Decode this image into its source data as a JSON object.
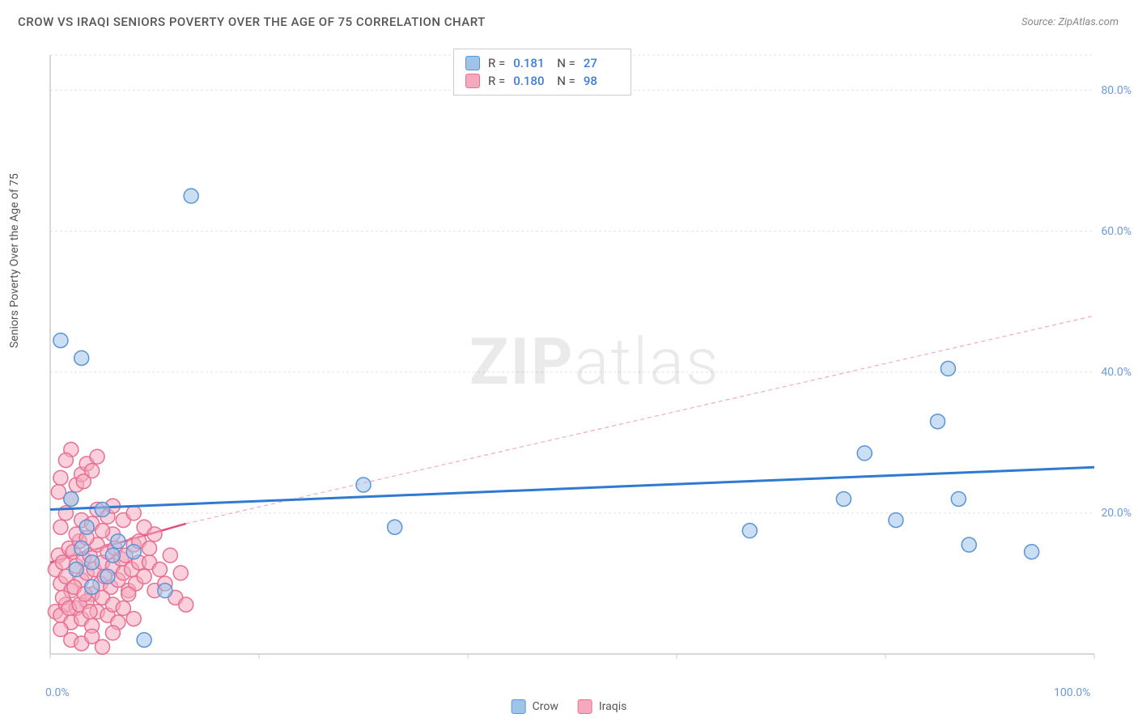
{
  "title": "CROW VS IRAQI SENIORS POVERTY OVER THE AGE OF 75 CORRELATION CHART",
  "source_prefix": "Source: ",
  "source_name": "ZipAtlas.com",
  "y_axis_label": "Seniors Poverty Over the Age of 75",
  "watermark_bold": "ZIP",
  "watermark_light": "atlas",
  "chart": {
    "type": "scatter",
    "xlim": [
      0,
      100
    ],
    "ylim": [
      0,
      85
    ],
    "x_ticks": [
      0,
      20,
      40,
      60,
      80,
      100
    ],
    "y_gridlines": [
      20,
      40,
      60,
      80,
      85
    ],
    "y_tick_labels": [
      {
        "v": 20,
        "label": "20.0%"
      },
      {
        "v": 40,
        "label": "40.0%"
      },
      {
        "v": 60,
        "label": "60.0%"
      },
      {
        "v": 80,
        "label": "80.0%"
      }
    ],
    "x_tick_labels": [
      {
        "v": 0,
        "label": "0.0%"
      },
      {
        "v": 100,
        "label": "100.0%"
      }
    ],
    "background_color": "#ffffff",
    "gridline_color": "#e4e4e4",
    "axis_color": "#cccccc",
    "marker_radius": 9,
    "marker_stroke_width": 1.5,
    "series": [
      {
        "name": "Crow",
        "fill": "#9fc4ea",
        "fill_opacity": 0.55,
        "stroke": "#5a94d6",
        "trend": {
          "x1": 0,
          "y1": 20.5,
          "x2": 100,
          "y2": 26.5,
          "color": "#2f7ad1",
          "width": 3,
          "dash": "none"
        },
        "points": [
          [
            1,
            44.5
          ],
          [
            3,
            42
          ],
          [
            13.5,
            65
          ],
          [
            2,
            22
          ],
          [
            5,
            20.5
          ],
          [
            6,
            14
          ],
          [
            8,
            14.5
          ],
          [
            11,
            9
          ],
          [
            9,
            2
          ],
          [
            30,
            24
          ],
          [
            33,
            18
          ],
          [
            67,
            17.5
          ],
          [
            78,
            28.5
          ],
          [
            76,
            22
          ],
          [
            81,
            19
          ],
          [
            85,
            33
          ],
          [
            86,
            40.5
          ],
          [
            87,
            22
          ],
          [
            88,
            15.5
          ],
          [
            94,
            14.5
          ],
          [
            3,
            15
          ],
          [
            4,
            13
          ],
          [
            2.5,
            12
          ],
          [
            6.5,
            16
          ],
          [
            5.5,
            11
          ],
          [
            4,
            9.5
          ],
          [
            3.5,
            18
          ]
        ]
      },
      {
        "name": "Iraqis",
        "fill": "#f4a9bd",
        "fill_opacity": 0.55,
        "stroke": "#e86f93",
        "trend": {
          "x1": 0,
          "y1": 13,
          "x2": 13,
          "y2": 18.5,
          "color": "#e04f7a",
          "width": 2.5,
          "dash": "none"
        },
        "trend_ext": {
          "x1": 13,
          "y1": 18.5,
          "x2": 100,
          "y2": 48,
          "color": "#f4a9bd",
          "width": 1.2,
          "dash": "5,4"
        },
        "points": [
          [
            0.5,
            12
          ],
          [
            0.8,
            14
          ],
          [
            1,
            10
          ],
          [
            1.2,
            13
          ],
          [
            1.5,
            11
          ],
          [
            1.8,
            15
          ],
          [
            2,
            9
          ],
          [
            2.2,
            14.5
          ],
          [
            2.5,
            12.5
          ],
          [
            2.8,
            16
          ],
          [
            3,
            10.5
          ],
          [
            3.2,
            13.5
          ],
          [
            3.5,
            11.5
          ],
          [
            3.8,
            14
          ],
          [
            4,
            8.5
          ],
          [
            4.2,
            12
          ],
          [
            4.5,
            15.5
          ],
          [
            4.8,
            10
          ],
          [
            5,
            13
          ],
          [
            5.2,
            11
          ],
          [
            5.5,
            14.5
          ],
          [
            5.8,
            9.5
          ],
          [
            6,
            12.5
          ],
          [
            6.2,
            15
          ],
          [
            6.5,
            10.5
          ],
          [
            6.8,
            13.5
          ],
          [
            7,
            11.5
          ],
          [
            7.2,
            14
          ],
          [
            7.5,
            9
          ],
          [
            7.8,
            12
          ],
          [
            8,
            15.5
          ],
          [
            8.2,
            10
          ],
          [
            8.5,
            13
          ],
          [
            1,
            18
          ],
          [
            1.5,
            20
          ],
          [
            2,
            22
          ],
          [
            2.5,
            24
          ],
          [
            3,
            25.5
          ],
          [
            3.5,
            27
          ],
          [
            4,
            26
          ],
          [
            4.5,
            28
          ],
          [
            2,
            29
          ],
          [
            1,
            25
          ],
          [
            1.5,
            27.5
          ],
          [
            0.8,
            23
          ],
          [
            3.2,
            24.5
          ],
          [
            0.5,
            6
          ],
          [
            1,
            5.5
          ],
          [
            1.5,
            7
          ],
          [
            2,
            4.5
          ],
          [
            2.5,
            6.5
          ],
          [
            3,
            5
          ],
          [
            3.5,
            7.5
          ],
          [
            4,
            4
          ],
          [
            4.5,
            6
          ],
          [
            5,
            8
          ],
          [
            5.5,
            5.5
          ],
          [
            6,
            7
          ],
          [
            6.5,
            4.5
          ],
          [
            7,
            6.5
          ],
          [
            7.5,
            8.5
          ],
          [
            8,
            5
          ],
          [
            2,
            2
          ],
          [
            3,
            1.5
          ],
          [
            4,
            2.5
          ],
          [
            5,
            1
          ],
          [
            6,
            3
          ],
          [
            1,
            3.5
          ],
          [
            9,
            11
          ],
          [
            9.5,
            13
          ],
          [
            10,
            9
          ],
          [
            10.5,
            12
          ],
          [
            11,
            10
          ],
          [
            11.5,
            14
          ],
          [
            12,
            8
          ],
          [
            12.5,
            11.5
          ],
          [
            13,
            7
          ],
          [
            8.5,
            16
          ],
          [
            9,
            18
          ],
          [
            9.5,
            15
          ],
          [
            10,
            17
          ],
          [
            6,
            17
          ],
          [
            7,
            19
          ],
          [
            8,
            20
          ],
          [
            2.5,
            17
          ],
          [
            3,
            19
          ],
          [
            3.5,
            16.5
          ],
          [
            4,
            18.5
          ],
          [
            4.5,
            20.5
          ],
          [
            5,
            17.5
          ],
          [
            5.5,
            19.5
          ],
          [
            6,
            21
          ],
          [
            1.2,
            8
          ],
          [
            1.8,
            6.5
          ],
          [
            2.3,
            9.5
          ],
          [
            2.8,
            7
          ],
          [
            3.3,
            8.5
          ],
          [
            3.8,
            6
          ]
        ]
      }
    ]
  },
  "stats": [
    {
      "series": "Crow",
      "r_label": "R =",
      "r": "0.181",
      "n_label": "N =",
      "n": "27"
    },
    {
      "series": "Iraqis",
      "r_label": "R =",
      "r": "0.180",
      "n_label": "N =",
      "n": "98"
    }
  ],
  "legend": [
    {
      "name": "Crow",
      "fill": "#9fc4ea",
      "stroke": "#5a94d6"
    },
    {
      "name": "Iraqis",
      "fill": "#f4a9bd",
      "stroke": "#e86f93"
    }
  ]
}
